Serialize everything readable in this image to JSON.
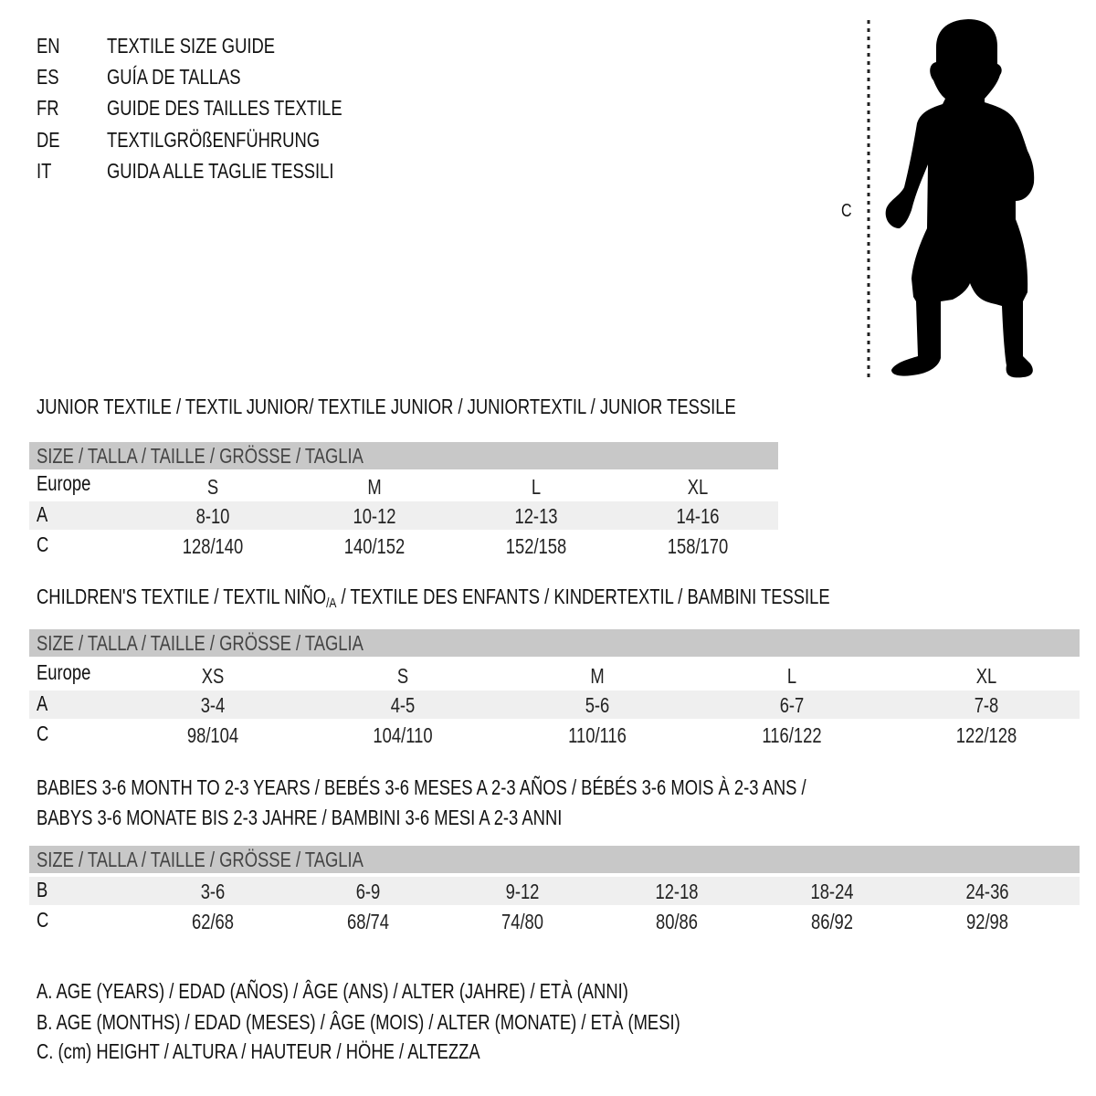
{
  "titles": [
    {
      "code": "EN",
      "text": "TEXTILE SIZE GUIDE"
    },
    {
      "code": "ES",
      "text": "GUÍA DE TALLAS"
    },
    {
      "code": "FR",
      "text": "GUIDE DES TAILLES TEXTILE"
    },
    {
      "code": "DE",
      "text": "TEXTILGRÖßENFÜHRUNG"
    },
    {
      "code": "IT",
      "text": "GUIDA ALLE TAGLIE TESSILI"
    }
  ],
  "figure": {
    "measure_label": "C",
    "icon": "child-silhouette"
  },
  "junior": {
    "heading": "JUNIOR TEXTILE / TEXTIL JUNIOR/ TEXTILE JUNIOR / JUNIORTEXTIL / JUNIOR TESSILE",
    "header": "SIZE / TALLA / TAILLE / GRÖSSE / TAGLIA",
    "rows": [
      {
        "label": "Europe",
        "values": [
          "S",
          "M",
          "L",
          "XL"
        ]
      },
      {
        "label": "A",
        "values": [
          "8-10",
          "10-12",
          "12-13",
          "14-16"
        ]
      },
      {
        "label": "C",
        "values": [
          "128/140",
          "140/152",
          "152/158",
          "158/170"
        ]
      }
    ]
  },
  "children": {
    "heading_pre": "CHILDREN'S TEXTILE / TEXTIL NIÑO",
    "heading_sub": "/A",
    "heading_post": " / TEXTILE DES ENFANTS / KINDERTEXTIL / BAMBINI TESSILE",
    "header": "SIZE / TALLA / TAILLE / GRÖSSE / TAGLIA",
    "rows": [
      {
        "label": "Europe",
        "values": [
          "XS",
          "S",
          "M",
          "L",
          "XL"
        ]
      },
      {
        "label": "A",
        "values": [
          "3-4",
          "4-5",
          "5-6",
          "6-7",
          "7-8"
        ]
      },
      {
        "label": "C",
        "values": [
          "98/104",
          "104/110",
          "110/116",
          "116/122",
          "122/128"
        ]
      }
    ]
  },
  "babies": {
    "heading_1": "BABIES 3-6 MONTH TO 2-3 YEARS / BEBÉS 3-6 MESES A 2-3 AÑOS / BÉBÉS 3-6 MOIS À 2-3 ANS /",
    "heading_2": "BABYS 3-6 MONATE BIS 2-3 JAHRE / BAMBINI 3-6 MESI A 2-3 ANNI",
    "header": "SIZE / TALLA / TAILLE / GRÖSSE / TAGLIA",
    "rows": [
      {
        "label": "B",
        "values": [
          "3-6",
          "6-9",
          "9-12",
          "12-18",
          "18-24",
          "24-36"
        ]
      },
      {
        "label": "C",
        "values": [
          "62/68",
          "68/74",
          "74/80",
          "80/86",
          "86/92",
          "92/98"
        ]
      }
    ]
  },
  "legend": [
    "A. AGE (YEARS) / EDAD (AÑOS) / ÂGE (ANS) / ALTER (JAHRE) / ETÀ (ANNI)",
    "B. AGE (MONTHS) / EDAD (MESES) / ÂGE (MOIS) / ALTER (MONATE) / ETÀ (MESI)",
    "C. (cm) HEIGHT / ALTURA / HAUTEUR / HÖHE / ALTEZZA"
  ]
}
